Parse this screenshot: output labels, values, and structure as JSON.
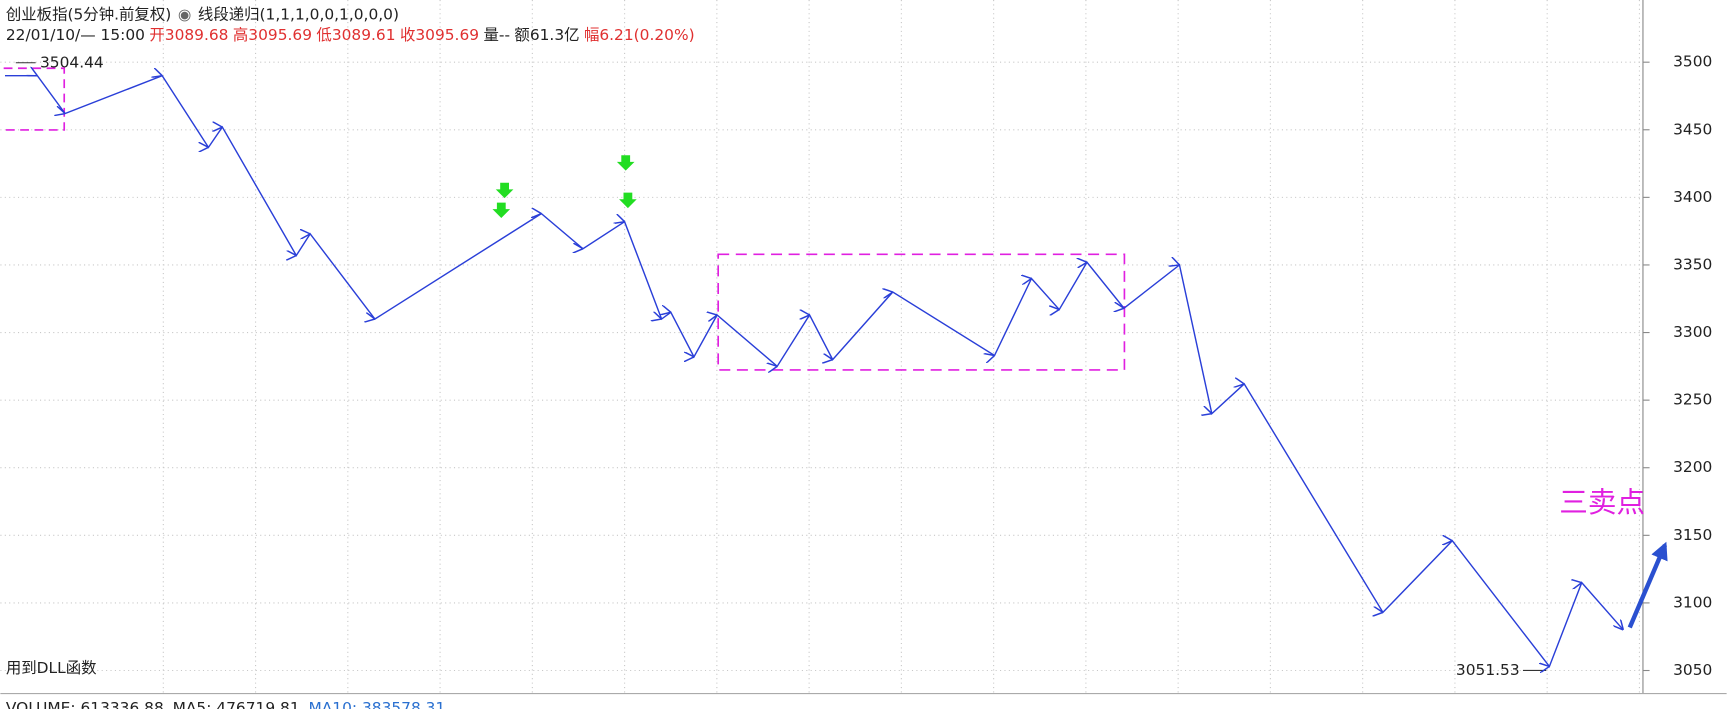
{
  "chart_data": {
    "type": "line",
    "title": "创业板指(5分钟.前复权)",
    "indicator": "线段递归(1,1,1,0,0,1,0,0,0)",
    "info": {
      "date": "22/01/10/— 15:00",
      "open_label": "开",
      "open": 3089.68,
      "high_label": "高",
      "high": 3095.69,
      "low_label": "低",
      "low": 3089.61,
      "close_label": "收",
      "close": 3095.69,
      "volume": "量--",
      "amount": "额61.3亿",
      "range_label": "幅",
      "range": "6.21(0.20%)"
    },
    "x": [
      1,
      8,
      14,
      35,
      45,
      48,
      64,
      67,
      81,
      117,
      126,
      135,
      143,
      145,
      150,
      155,
      168,
      175,
      180,
      193,
      215,
      223,
      229,
      235,
      243,
      255,
      262,
      269,
      299,
      314,
      335,
      342,
      351
    ],
    "values": [
      3490,
      3490,
      3462,
      3490,
      3437,
      3452,
      3357,
      3373,
      3310,
      3388,
      3362,
      3382,
      3310,
      3315,
      3282,
      3313,
      3275,
      3313,
      3280,
      3330,
      3283,
      3340,
      3317,
      3352,
      3318,
      3350,
      3240,
      3262,
      3093,
      3146,
      3053,
      3115,
      3080
    ],
    "color": "#2a3fd8",
    "xlim": [
      0,
      355
    ],
    "ylim": [
      3037,
      3546
    ],
    "yticks": [
      3050,
      3100,
      3150,
      3200,
      3250,
      3300,
      3350,
      3400,
      3450,
      3500
    ],
    "grid": true,
    "annotations": {
      "high": 3504.44,
      "low": 3051.53,
      "signal": "三卖点",
      "note": "用到DLL函数"
    },
    "footer": {
      "volume": "VOLUME: 613336.88",
      "ma5": "MA5: 476719.81",
      "ma10": "MA10: 383578.31"
    }
  }
}
